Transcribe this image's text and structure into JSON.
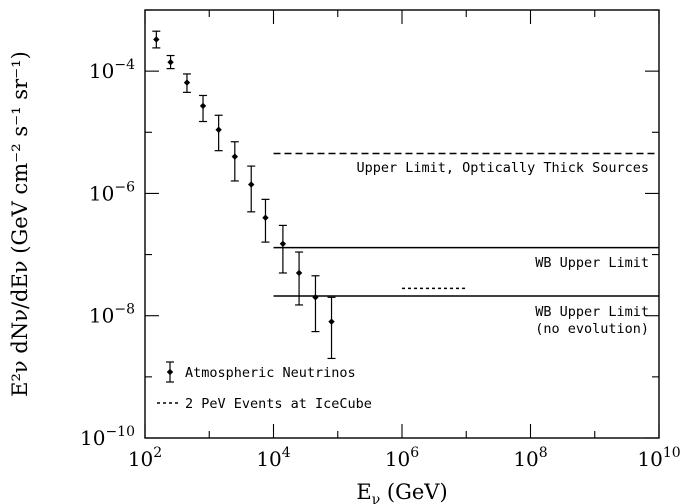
{
  "chart_data": {
    "type": "scatter",
    "x_scale": "log",
    "y_scale": "log",
    "xlim": [
      100,
      10000000000
    ],
    "ylim": [
      1e-10,
      0.001
    ],
    "x_ticks": [
      {
        "value": 100,
        "base": "10",
        "exp": "2"
      },
      {
        "value": 10000,
        "base": "10",
        "exp": "4"
      },
      {
        "value": 1000000,
        "base": "10",
        "exp": "6"
      },
      {
        "value": 100000000,
        "base": "10",
        "exp": "8"
      },
      {
        "value": 10000000000,
        "base": "10",
        "exp": "10"
      }
    ],
    "y_ticks": [
      {
        "value": 1e-10,
        "base": "10",
        "exp": "−10"
      },
      {
        "value": 1e-08,
        "base": "10",
        "exp": "−8"
      },
      {
        "value": 1e-06,
        "base": "10",
        "exp": "−6"
      },
      {
        "value": 0.0001,
        "base": "10",
        "exp": "−4"
      }
    ],
    "xlabel": {
      "main": "E",
      "sub": "ν",
      "rest": " (GeV)"
    },
    "ylabel": "E²ν dNν/dEν (GeV cm⁻² s⁻¹ sr⁻¹)",
    "series": [
      {
        "name": "Atmospheric Neutrinos",
        "kind": "points_with_errors",
        "points": [
          {
            "x": 150,
            "y": 0.00033,
            "ylo": 0.00024,
            "yhi": 0.00045
          },
          {
            "x": 250,
            "y": 0.00014,
            "ylo": 0.00011,
            "yhi": 0.00018
          },
          {
            "x": 450,
            "y": 6.5e-05,
            "ylo": 4.5e-05,
            "yhi": 9e-05
          },
          {
            "x": 800,
            "y": 2.7e-05,
            "ylo": 1.5e-05,
            "yhi": 4e-05
          },
          {
            "x": 1400,
            "y": 1.1e-05,
            "ylo": 5e-06,
            "yhi": 1.9e-05
          },
          {
            "x": 2500,
            "y": 4e-06,
            "ylo": 1.6e-06,
            "yhi": 7e-06
          },
          {
            "x": 4500,
            "y": 1.4e-06,
            "ylo": 5e-07,
            "yhi": 2.8e-06
          },
          {
            "x": 7500,
            "y": 4e-07,
            "ylo": 1.6e-07,
            "yhi": 8e-07
          },
          {
            "x": 14000,
            "y": 1.5e-07,
            "ylo": 5e-08,
            "yhi": 3e-07
          },
          {
            "x": 25000,
            "y": 5e-08,
            "ylo": 1.5e-08,
            "yhi": 1.1e-07
          },
          {
            "x": 45000,
            "y": 2e-08,
            "ylo": 5.5e-09,
            "yhi": 4.5e-08
          },
          {
            "x": 80000,
            "y": 8e-09,
            "ylo": 2e-09,
            "yhi": 2e-08
          }
        ]
      },
      {
        "name": "Upper Limit, Optically Thick Sources",
        "kind": "hline",
        "style": "dashed",
        "y": 4.5e-06,
        "x_from": 10000,
        "x_to": 10000000000,
        "label_at_x": 7000000000,
        "label_at_y": 2.7e-06,
        "align": "end"
      },
      {
        "name": "WB Upper Limit",
        "kind": "hline",
        "style": "solid",
        "y": 1.3e-07,
        "x_from": 10000,
        "x_to": 10000000000,
        "label_at_x": 7000000000,
        "label_at_y": 7.5e-08,
        "align": "end"
      },
      {
        "name": "WB Upper Limit (no evolution)",
        "kind": "hline",
        "style": "solid",
        "y": 2.1e-08,
        "x_from": 10000,
        "x_to": 10000000000
      },
      {
        "name": "2 PeV Events at IceCube",
        "kind": "hline",
        "style": "dotted",
        "y": 2.8e-08,
        "x_from": 1000000,
        "x_to": 10000000
      }
    ],
    "annotations": [
      {
        "text": "WB Upper Limit",
        "x": 7000000000,
        "y": 1.2e-08,
        "align": "end"
      },
      {
        "text": "(no evolution)",
        "x": 7000000000,
        "y": 6.3e-09,
        "align": "end"
      }
    ],
    "legend": {
      "position": "bottom-left",
      "entries": [
        {
          "label": "Atmospheric Neutrinos",
          "marker": "errorbar-point"
        },
        {
          "label": "2 PeV Events at IceCube",
          "marker": "dotted-line"
        }
      ]
    }
  }
}
